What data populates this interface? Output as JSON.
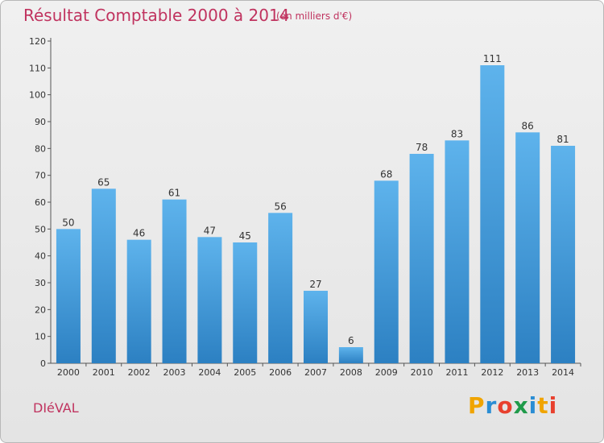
{
  "chart_data": {
    "type": "bar",
    "title": "Résultat Comptable 2000 à 2014",
    "subtitle": "(en milliers d'€)",
    "categories": [
      "2000",
      "2001",
      "2002",
      "2003",
      "2004",
      "2005",
      "2006",
      "2007",
      "2008",
      "2009",
      "2010",
      "2011",
      "2012",
      "2013",
      "2014"
    ],
    "values": [
      50,
      65,
      46,
      61,
      47,
      45,
      56,
      27,
      6,
      68,
      78,
      83,
      111,
      86,
      81
    ],
    "ylim": [
      0,
      120
    ],
    "yticks": [
      0,
      10,
      20,
      30,
      40,
      50,
      60,
      70,
      80,
      90,
      100,
      110,
      120
    ],
    "xlabel": "",
    "ylabel": "",
    "grid": false
  },
  "commune": "DIéVAL",
  "logo": {
    "text": "Proxiti",
    "letters": [
      "P",
      "r",
      "o",
      "x",
      "i",
      "t",
      "i"
    ],
    "colors": [
      "#f0a400",
      "#2a8dd4",
      "#e8402e",
      "#1f9a4a",
      "#2a8dd4",
      "#f0a400",
      "#e8402e"
    ]
  },
  "colors": {
    "bar_top": "#5eb3ec",
    "bar_bottom": "#2c80c2",
    "accent": "#c0335f",
    "axis": "#555555"
  }
}
